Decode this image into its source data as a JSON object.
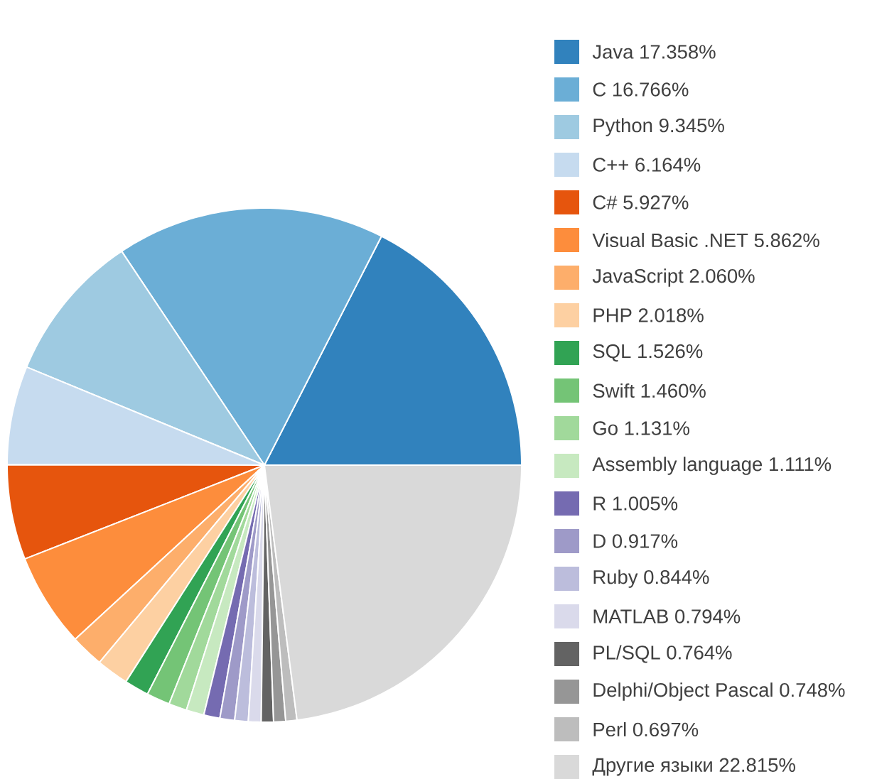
{
  "chart_data": {
    "type": "pie",
    "legend": "right",
    "categories": [
      "Java",
      "C",
      "Python",
      "C++",
      "C#",
      "Visual Basic .NET",
      "JavaScript",
      "PHP",
      "SQL",
      "Swift",
      "Go",
      "Assembly language",
      "R",
      "D",
      "Ruby",
      "MATLAB",
      "PL/SQL",
      "Delphi/Object Pascal",
      "Perl",
      "Другие языки"
    ],
    "values": [
      17.358,
      16.766,
      9.345,
      6.164,
      5.927,
      5.862,
      2.06,
      2.018,
      1.526,
      1.46,
      1.131,
      1.111,
      1.005,
      0.917,
      0.844,
      0.794,
      0.764,
      0.748,
      0.697,
      22.815
    ],
    "value_labels": [
      "17.358%",
      "16.766%",
      "9.345%",
      "6.164%",
      "5.927%",
      "5.862%",
      "2.060%",
      "2.018%",
      "1.526%",
      "1.460%",
      "1.131%",
      "1.111%",
      "1.005%",
      "0.917%",
      "0.844%",
      "0.794%",
      "0.764%",
      "0.748%",
      "0.697%",
      "22.815%"
    ],
    "colors": [
      "#3182bd",
      "#6baed6",
      "#9ecae1",
      "#c6dbef",
      "#e6550d",
      "#fd8d3c",
      "#fdae6b",
      "#fdd0a2",
      "#31a354",
      "#74c476",
      "#a1d99b",
      "#c7e9c0",
      "#756bb1",
      "#9e9ac8",
      "#bcbddc",
      "#dadaeb",
      "#636363",
      "#969696",
      "#bdbdbd",
      "#d9d9d9"
    ]
  }
}
